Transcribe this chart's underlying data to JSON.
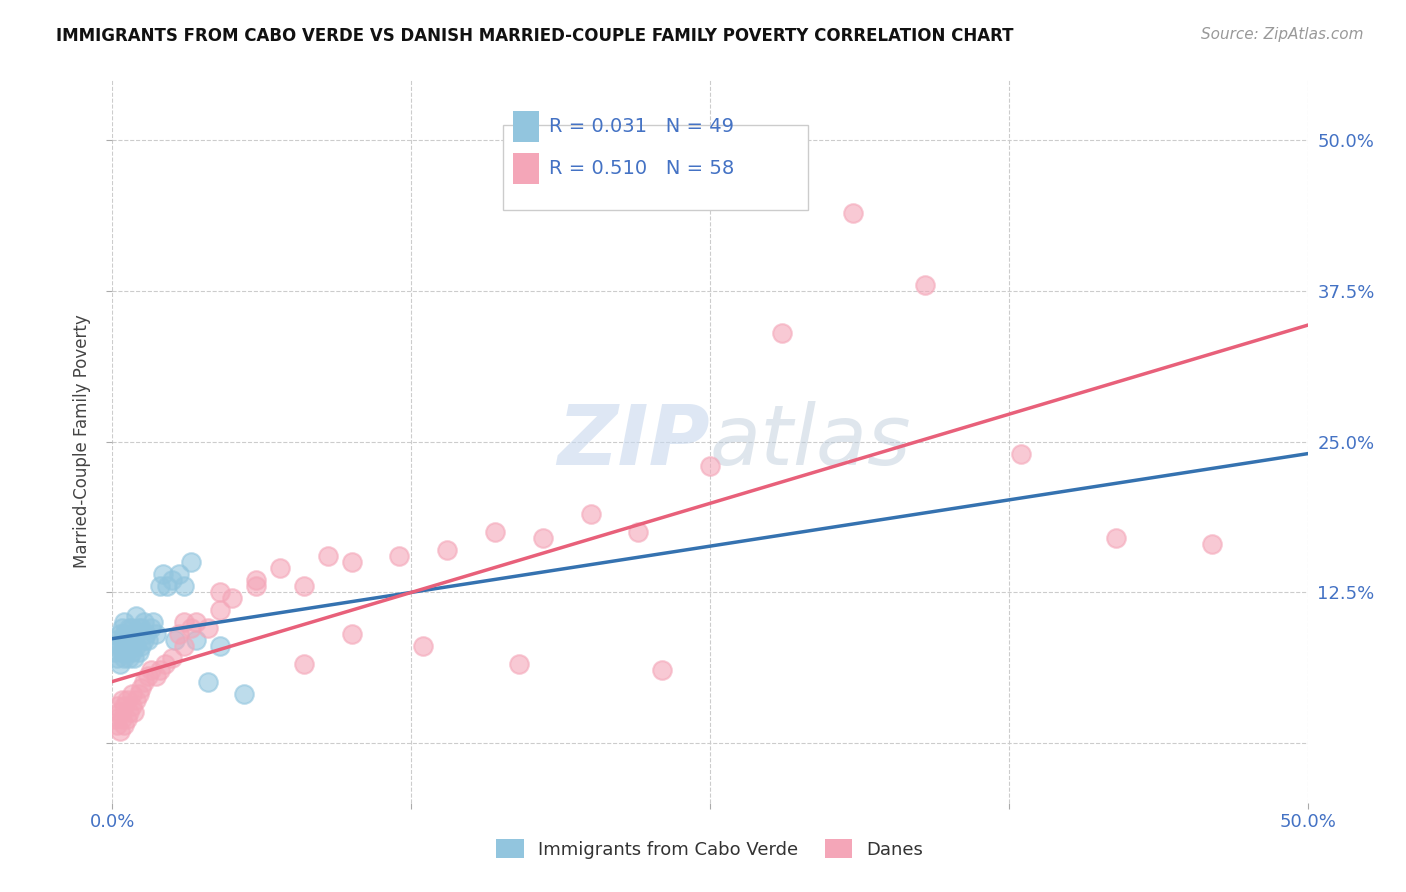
{
  "title": "IMMIGRANTS FROM CABO VERDE VS DANISH MARRIED-COUPLE FAMILY POVERTY CORRELATION CHART",
  "source": "Source: ZipAtlas.com",
  "ylabel": "Married-Couple Family Poverty",
  "legend_label1": "Immigrants from Cabo Verde",
  "legend_label2": "Danes",
  "R1": 0.031,
  "N1": 49,
  "R2": 0.51,
  "N2": 58,
  "xlim": [
    0.0,
    0.5
  ],
  "ylim": [
    -0.05,
    0.55
  ],
  "color_blue": "#92c5de",
  "color_pink": "#f4a6b8",
  "line_blue": "#3572b0",
  "line_pink": "#e8607a",
  "background": "#ffffff",
  "cabo_verde_x": [
    0.001,
    0.002,
    0.002,
    0.003,
    0.003,
    0.003,
    0.004,
    0.004,
    0.004,
    0.005,
    0.005,
    0.005,
    0.005,
    0.006,
    0.006,
    0.007,
    0.007,
    0.007,
    0.008,
    0.008,
    0.008,
    0.009,
    0.009,
    0.01,
    0.01,
    0.01,
    0.011,
    0.011,
    0.012,
    0.012,
    0.013,
    0.013,
    0.014,
    0.015,
    0.016,
    0.017,
    0.018,
    0.02,
    0.021,
    0.023,
    0.025,
    0.026,
    0.028,
    0.03,
    0.033,
    0.035,
    0.04,
    0.045,
    0.055
  ],
  "cabo_verde_y": [
    0.075,
    0.07,
    0.085,
    0.065,
    0.08,
    0.09,
    0.075,
    0.085,
    0.095,
    0.07,
    0.08,
    0.09,
    0.1,
    0.075,
    0.085,
    0.07,
    0.08,
    0.095,
    0.075,
    0.085,
    0.095,
    0.07,
    0.09,
    0.08,
    0.09,
    0.105,
    0.075,
    0.095,
    0.08,
    0.095,
    0.085,
    0.1,
    0.09,
    0.085,
    0.095,
    0.1,
    0.09,
    0.13,
    0.14,
    0.13,
    0.135,
    0.085,
    0.14,
    0.13,
    0.15,
    0.085,
    0.05,
    0.08,
    0.04
  ],
  "danes_x": [
    0.001,
    0.002,
    0.002,
    0.003,
    0.003,
    0.004,
    0.004,
    0.005,
    0.005,
    0.006,
    0.006,
    0.007,
    0.008,
    0.008,
    0.009,
    0.01,
    0.011,
    0.012,
    0.013,
    0.015,
    0.016,
    0.018,
    0.02,
    0.022,
    0.025,
    0.028,
    0.03,
    0.033,
    0.035,
    0.04,
    0.045,
    0.05,
    0.06,
    0.07,
    0.08,
    0.09,
    0.1,
    0.12,
    0.14,
    0.16,
    0.18,
    0.2,
    0.22,
    0.25,
    0.28,
    0.31,
    0.34,
    0.38,
    0.42,
    0.46,
    0.03,
    0.045,
    0.06,
    0.08,
    0.1,
    0.13,
    0.17,
    0.23
  ],
  "danes_y": [
    0.02,
    0.015,
    0.03,
    0.01,
    0.025,
    0.02,
    0.035,
    0.015,
    0.03,
    0.02,
    0.035,
    0.025,
    0.03,
    0.04,
    0.025,
    0.035,
    0.04,
    0.045,
    0.05,
    0.055,
    0.06,
    0.055,
    0.06,
    0.065,
    0.07,
    0.09,
    0.08,
    0.095,
    0.1,
    0.095,
    0.11,
    0.12,
    0.135,
    0.145,
    0.13,
    0.155,
    0.15,
    0.155,
    0.16,
    0.175,
    0.17,
    0.19,
    0.175,
    0.23,
    0.34,
    0.44,
    0.38,
    0.24,
    0.17,
    0.165,
    0.1,
    0.125,
    0.13,
    0.065,
    0.09,
    0.08,
    0.065,
    0.06
  ]
}
